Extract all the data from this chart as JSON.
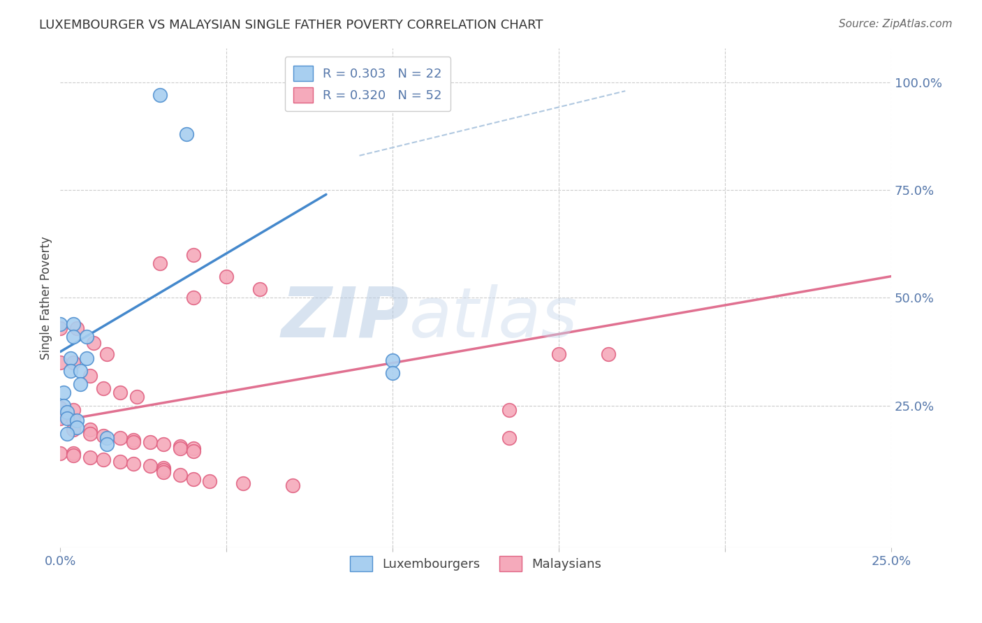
{
  "title": "LUXEMBOURGER VS MALAYSIAN SINGLE FATHER POVERTY CORRELATION CHART",
  "source": "Source: ZipAtlas.com",
  "ylabel": "Single Father Poverty",
  "xlim": [
    0.0,
    0.25
  ],
  "ylim": [
    -0.08,
    1.08
  ],
  "ytick_vals_right": [
    1.0,
    0.75,
    0.5,
    0.25
  ],
  "legend_r_lux": "R = 0.303",
  "legend_n_lux": "N = 22",
  "legend_r_mal": "R = 0.320",
  "legend_n_mal": "N = 52",
  "lux_color": "#A8CFF0",
  "mal_color": "#F5AABB",
  "lux_edge_color": "#5090D0",
  "mal_edge_color": "#E06080",
  "lux_line_color": "#4488CC",
  "mal_line_color": "#E07090",
  "ref_line_color": "#B0C8E0",
  "grid_color": "#CCCCCC",
  "title_color": "#333333",
  "axis_label_color": "#5577AA",
  "lux_points_x": [
    0.03,
    0.038,
    0.0,
    0.004,
    0.004,
    0.008,
    0.008,
    0.003,
    0.003,
    0.006,
    0.006,
    0.001,
    0.001,
    0.002,
    0.002,
    0.005,
    0.005,
    0.002,
    0.014,
    0.014,
    0.1,
    0.1
  ],
  "lux_points_y": [
    0.97,
    0.88,
    0.44,
    0.44,
    0.41,
    0.41,
    0.36,
    0.36,
    0.33,
    0.33,
    0.3,
    0.28,
    0.25,
    0.235,
    0.22,
    0.215,
    0.2,
    0.185,
    0.175,
    0.16,
    0.355,
    0.325
  ],
  "mal_points_x": [
    0.04,
    0.06,
    0.03,
    0.05,
    0.04,
    0.0,
    0.005,
    0.01,
    0.014,
    0.0,
    0.004,
    0.009,
    0.013,
    0.018,
    0.023,
    0.0,
    0.004,
    0.0,
    0.004,
    0.004,
    0.009,
    0.009,
    0.013,
    0.018,
    0.022,
    0.022,
    0.027,
    0.031,
    0.036,
    0.036,
    0.04,
    0.04,
    0.0,
    0.004,
    0.004,
    0.009,
    0.013,
    0.018,
    0.022,
    0.027,
    0.031,
    0.031,
    0.031,
    0.036,
    0.04,
    0.045,
    0.055,
    0.07,
    0.15,
    0.165,
    0.135,
    0.135
  ],
  "mal_points_y": [
    0.6,
    0.52,
    0.58,
    0.55,
    0.5,
    0.43,
    0.43,
    0.395,
    0.37,
    0.35,
    0.35,
    0.32,
    0.29,
    0.28,
    0.27,
    0.245,
    0.24,
    0.22,
    0.215,
    0.195,
    0.195,
    0.185,
    0.18,
    0.175,
    0.17,
    0.165,
    0.165,
    0.16,
    0.155,
    0.15,
    0.15,
    0.145,
    0.14,
    0.14,
    0.135,
    0.13,
    0.125,
    0.12,
    0.115,
    0.11,
    0.105,
    0.1,
    0.095,
    0.09,
    0.08,
    0.075,
    0.07,
    0.065,
    0.37,
    0.37,
    0.24,
    0.175
  ],
  "lux_trend_x": [
    0.0,
    0.08
  ],
  "lux_trend_y": [
    0.375,
    0.74
  ],
  "mal_trend_x": [
    0.0,
    0.25
  ],
  "mal_trend_y": [
    0.215,
    0.55
  ],
  "ref_line_x": [
    0.09,
    0.17
  ],
  "ref_line_y": [
    0.83,
    0.98
  ],
  "watermark_zip": "ZIP",
  "watermark_atlas": "atlas",
  "background_color": "#FFFFFF"
}
